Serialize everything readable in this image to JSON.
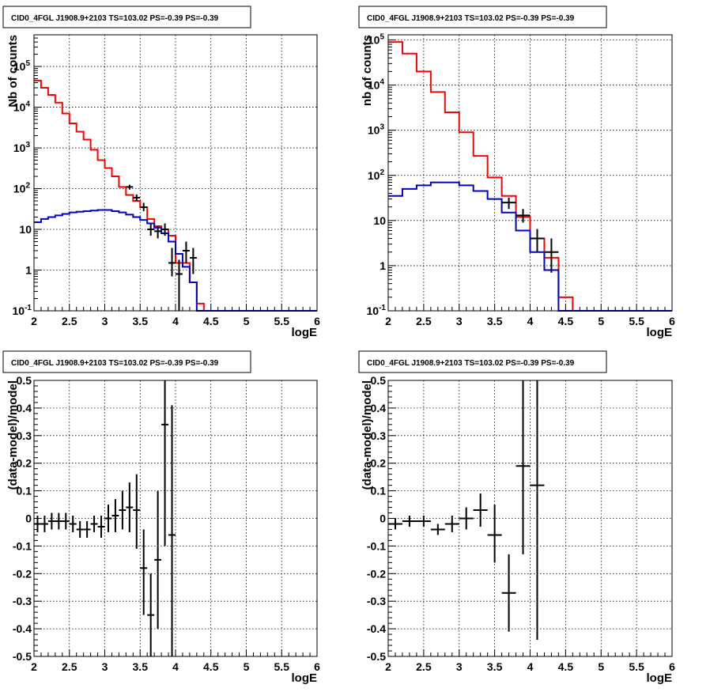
{
  "chart_data": [
    {
      "type": "line",
      "title": "CID0_4FGL J1908.9+2103 TS=103.02 PS=-0.39 PS=-0.39",
      "xlabel": "logE",
      "ylabel": "Nb of counts",
      "xlim": [
        2,
        6
      ],
      "ylim": [
        0.1,
        600000
      ],
      "yscale": "log",
      "grid": true,
      "x_ticks": [
        "2",
        "2.5",
        "3",
        "3.5",
        "4",
        "4.5",
        "5",
        "5.5",
        "6"
      ],
      "y_ticks": [
        {
          "v": 0.1,
          "m": "10",
          "e": "-1"
        },
        {
          "v": 1,
          "m": "1",
          "e": ""
        },
        {
          "v": 10,
          "m": "10",
          "e": ""
        },
        {
          "v": 100,
          "m": "10",
          "e": "2"
        },
        {
          "v": 1000,
          "m": "10",
          "e": "3"
        },
        {
          "v": 10000,
          "m": "10",
          "e": "4"
        },
        {
          "v": 100000,
          "m": "10",
          "e": "5"
        }
      ],
      "bin_width": 0.1,
      "bin_lows": [
        2,
        2.1,
        2.2,
        2.3,
        2.4,
        2.5,
        2.6,
        2.7,
        2.8,
        2.9,
        3,
        3.1,
        3.2,
        3.3,
        3.4,
        3.5,
        3.6,
        3.7,
        3.8,
        3.9,
        4,
        4.1,
        4.2,
        4.3,
        4.4,
        4.5,
        4.6,
        4.7,
        4.8,
        4.9,
        5,
        5.1,
        5.2,
        5.3,
        5.4,
        5.5,
        5.6,
        5.7,
        5.8,
        5.9
      ],
      "series": [
        {
          "color": "#ff0000",
          "values": [
            45000,
            30000,
            20000,
            13000,
            7000,
            4000,
            2500,
            1600,
            900,
            500,
            320,
            200,
            110,
            70,
            50,
            35,
            18,
            12,
            10,
            7,
            1.5,
            1.5,
            0.5,
            0.15,
            0,
            0,
            0,
            0,
            0,
            0,
            0,
            0,
            0,
            0,
            0,
            0,
            0,
            0,
            0,
            0
          ]
        },
        {
          "color": "#0000cc",
          "values": [
            15,
            18,
            20,
            22,
            24,
            26,
            27,
            28,
            29,
            30,
            30,
            28,
            26,
            23,
            20,
            17,
            14,
            11,
            8,
            5,
            2.5,
            1.2,
            0.5,
            0.1,
            0.1,
            0.1,
            0.1,
            0.1,
            0.1,
            0.1,
            0.1,
            0.1,
            0.1,
            0.1,
            0.1,
            0.1,
            0.1,
            0.1,
            0.1,
            0.1
          ]
        }
      ],
      "data_points": [
        {
          "x": 3.35,
          "y": 110,
          "lo": 95,
          "hi": 125
        },
        {
          "x": 3.45,
          "y": 60,
          "lo": 50,
          "hi": 72
        },
        {
          "x": 3.55,
          "y": 35,
          "lo": 28,
          "hi": 45
        },
        {
          "x": 3.65,
          "y": 10,
          "lo": 7,
          "hi": 14
        },
        {
          "x": 3.75,
          "y": 9,
          "lo": 6,
          "hi": 12
        },
        {
          "x": 3.85,
          "y": 10,
          "lo": 7,
          "hi": 14
        },
        {
          "x": 3.95,
          "y": 1.5,
          "lo": 0.7,
          "hi": 3.5
        },
        {
          "x": 4.05,
          "y": 0.8,
          "lo": 0.1,
          "hi": 1.8
        },
        {
          "x": 4.15,
          "y": 3,
          "lo": 1.5,
          "hi": 5
        },
        {
          "x": 4.25,
          "y": 2,
          "lo": 0.8,
          "hi": 3.5
        }
      ]
    },
    {
      "type": "line",
      "title": "CID0_4FGL J1908.9+2103 TS=103.02 PS=-0.39 PS=-0.39",
      "xlabel": "logE",
      "ylabel": "nb of counts",
      "xlim": [
        2,
        6
      ],
      "ylim": [
        0.1,
        130000
      ],
      "yscale": "log",
      "grid": true,
      "x_ticks": [
        "2",
        "2.5",
        "3",
        "3.5",
        "4",
        "4.5",
        "5",
        "5.5",
        "6"
      ],
      "y_ticks": [
        {
          "v": 0.1,
          "m": "10",
          "e": "-1"
        },
        {
          "v": 1,
          "m": "1",
          "e": ""
        },
        {
          "v": 10,
          "m": "10",
          "e": ""
        },
        {
          "v": 100,
          "m": "10",
          "e": "2"
        },
        {
          "v": 1000,
          "m": "10",
          "e": "3"
        },
        {
          "v": 10000,
          "m": "10",
          "e": "4"
        },
        {
          "v": 100000,
          "m": "10",
          "e": "5"
        }
      ],
      "bin_width": 0.2,
      "bin_lows": [
        2,
        2.2,
        2.4,
        2.6,
        2.8,
        3,
        3.2,
        3.4,
        3.6,
        3.8,
        4,
        4.2,
        4.4,
        4.6,
        4.8,
        5,
        5.2,
        5.4,
        5.6,
        5.8
      ],
      "series": [
        {
          "color": "#ff0000",
          "values": [
            90000,
            50000,
            20000,
            7000,
            2500,
            900,
            270,
            90,
            35,
            12,
            4,
            1.5,
            0.2,
            0.1,
            0.1,
            0.1,
            0.1,
            0.1,
            0.1,
            0.1
          ]
        },
        {
          "color": "#0000cc",
          "values": [
            35,
            50,
            60,
            70,
            70,
            60,
            45,
            30,
            15,
            6,
            2,
            0.8,
            0.1,
            0.1,
            0.1,
            0.1,
            0.1,
            0.1,
            0.1,
            0.1
          ]
        }
      ],
      "data_points": [
        {
          "x": 3.7,
          "y": 25,
          "lo": 18,
          "hi": 32
        },
        {
          "x": 3.9,
          "y": 13,
          "lo": 9,
          "hi": 18
        },
        {
          "x": 4.1,
          "y": 4,
          "lo": 2,
          "hi": 6.5
        },
        {
          "x": 4.3,
          "y": 2,
          "lo": 0.7,
          "hi": 4
        }
      ]
    },
    {
      "type": "scatter",
      "title": "CID0_4FGL J1908.9+2103 TS=103.02 PS=-0.39 PS=-0.39",
      "xlabel": "logE",
      "ylabel": "(data-model)/model",
      "xlim": [
        2,
        6
      ],
      "ylim": [
        -0.5,
        0.5
      ],
      "grid": true,
      "x_ticks": [
        "2",
        "2.5",
        "3",
        "3.5",
        "4",
        "4.5",
        "5",
        "5.5",
        "6"
      ],
      "y_ticks": [
        "-0.5",
        "-0.4",
        "-0.3",
        "-0.2",
        "-0.1",
        "0",
        "0.1",
        "0.2",
        "0.3",
        "0.4",
        "0.5"
      ],
      "xerr": 0.05,
      "points": [
        {
          "x": 2.05,
          "y": -0.02,
          "lo": -0.05,
          "hi": 0.01
        },
        {
          "x": 2.15,
          "y": -0.02,
          "lo": -0.05,
          "hi": 0.01
        },
        {
          "x": 2.25,
          "y": -0.01,
          "lo": -0.04,
          "hi": 0.02
        },
        {
          "x": 2.35,
          "y": -0.01,
          "lo": -0.04,
          "hi": 0.02
        },
        {
          "x": 2.45,
          "y": -0.01,
          "lo": -0.04,
          "hi": 0.02
        },
        {
          "x": 2.55,
          "y": -0.02,
          "lo": -0.05,
          "hi": 0.01
        },
        {
          "x": 2.65,
          "y": -0.04,
          "lo": -0.07,
          "hi": -0.01
        },
        {
          "x": 2.75,
          "y": -0.04,
          "lo": -0.07,
          "hi": -0.01
        },
        {
          "x": 2.85,
          "y": -0.02,
          "lo": -0.05,
          "hi": 0.01
        },
        {
          "x": 2.95,
          "y": -0.03,
          "lo": -0.07,
          "hi": 0.01
        },
        {
          "x": 3.05,
          "y": 0.0,
          "lo": -0.05,
          "hi": 0.05
        },
        {
          "x": 3.15,
          "y": 0.01,
          "lo": -0.05,
          "hi": 0.07
        },
        {
          "x": 3.25,
          "y": 0.03,
          "lo": -0.04,
          "hi": 0.1
        },
        {
          "x": 3.35,
          "y": 0.04,
          "lo": -0.05,
          "hi": 0.13
        },
        {
          "x": 3.45,
          "y": 0.03,
          "lo": -0.11,
          "hi": 0.16
        },
        {
          "x": 3.55,
          "y": -0.18,
          "lo": -0.35,
          "hi": -0.04
        },
        {
          "x": 3.65,
          "y": -0.35,
          "lo": -0.5,
          "hi": -0.2
        },
        {
          "x": 3.75,
          "y": -0.15,
          "lo": -0.4,
          "hi": 0.1
        },
        {
          "x": 3.85,
          "y": 0.34,
          "lo": -0.1,
          "hi": 0.5
        },
        {
          "x": 3.95,
          "y": -0.06,
          "lo": -0.5,
          "hi": 0.41
        }
      ]
    },
    {
      "type": "scatter",
      "title": "CID0_4FGL J1908.9+2103 TS=103.02 PS=-0.39 PS=-0.39",
      "xlabel": "logE",
      "ylabel": "(data-model)/model",
      "xlim": [
        2,
        6
      ],
      "ylim": [
        -0.5,
        0.5
      ],
      "grid": true,
      "x_ticks": [
        "2",
        "2.5",
        "3",
        "3.5",
        "4",
        "4.5",
        "5",
        "5.5",
        "6"
      ],
      "y_ticks": [
        "-0.5",
        "-0.4",
        "-0.3",
        "-0.2",
        "-0.1",
        "0",
        "0.1",
        "0.2",
        "0.3",
        "0.4",
        "0.5"
      ],
      "xerr": 0.1,
      "points": [
        {
          "x": 2.1,
          "y": -0.02,
          "lo": -0.04,
          "hi": 0.0
        },
        {
          "x": 2.3,
          "y": -0.01,
          "lo": -0.03,
          "hi": 0.01
        },
        {
          "x": 2.5,
          "y": -0.01,
          "lo": -0.03,
          "hi": 0.01
        },
        {
          "x": 2.7,
          "y": -0.04,
          "lo": -0.06,
          "hi": -0.02
        },
        {
          "x": 2.9,
          "y": -0.02,
          "lo": -0.05,
          "hi": 0.01
        },
        {
          "x": 3.1,
          "y": 0.0,
          "lo": -0.04,
          "hi": 0.04
        },
        {
          "x": 3.3,
          "y": 0.03,
          "lo": -0.03,
          "hi": 0.09
        },
        {
          "x": 3.5,
          "y": -0.06,
          "lo": -0.16,
          "hi": 0.05
        },
        {
          "x": 3.7,
          "y": -0.27,
          "lo": -0.41,
          "hi": -0.13
        },
        {
          "x": 3.9,
          "y": 0.19,
          "lo": -0.13,
          "hi": 0.5
        },
        {
          "x": 4.1,
          "y": 0.12,
          "lo": -0.44,
          "hi": 0.5
        }
      ]
    }
  ]
}
